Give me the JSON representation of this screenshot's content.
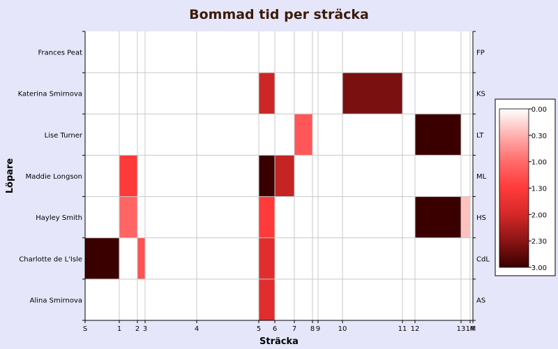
{
  "chart_data": {
    "type": "heatmap",
    "title": "Bommad tid per sträcka",
    "xlabel": "Sträcka",
    "ylabel": "Löpare",
    "x_ticks": [
      "S",
      "1",
      "2",
      "3",
      "4",
      "5",
      "6",
      "7",
      "8",
      "9",
      "10",
      "11",
      "12",
      "13",
      "14",
      "M"
    ],
    "runners": [
      {
        "name": "Frances Peat",
        "short": "FP"
      },
      {
        "name": "Katerina Smirnova",
        "short": "KS"
      },
      {
        "name": "Lise Turner",
        "short": "LT"
      },
      {
        "name": "Maddie Longson",
        "short": "ML"
      },
      {
        "name": "Hayley Smith",
        "short": "HS"
      },
      {
        "name": "Charlotte de L'Isle",
        "short": "CdL"
      },
      {
        "name": "Alina Smirnova",
        "short": "AS"
      }
    ],
    "cells": [
      {
        "runner": "Katerina Smirnova",
        "from": "5",
        "to": "6",
        "value": 2.05
      },
      {
        "runner": "Katerina Smirnova",
        "from": "10",
        "to": "11",
        "value": 2.6
      },
      {
        "runner": "Lise Turner",
        "from": "7",
        "to": "8",
        "value": 1.2
      },
      {
        "runner": "Lise Turner",
        "from": "12",
        "to": "13",
        "value": 3.0
      },
      {
        "runner": "Maddie Longson",
        "from": "1",
        "to": "2",
        "value": 1.5
      },
      {
        "runner": "Maddie Longson",
        "from": "5",
        "to": "6",
        "value": 3.0
      },
      {
        "runner": "Maddie Longson",
        "from": "6",
        "to": "7",
        "value": 2.1
      },
      {
        "runner": "Hayley Smith",
        "from": "1",
        "to": "2",
        "value": 1.05
      },
      {
        "runner": "Hayley Smith",
        "from": "5",
        "to": "6",
        "value": 1.5
      },
      {
        "runner": "Hayley Smith",
        "from": "12",
        "to": "13",
        "value": 3.0
      },
      {
        "runner": "Hayley Smith",
        "from": "13",
        "to": "14",
        "value": 0.4
      },
      {
        "runner": "Charlotte de L'Isle",
        "from": "S",
        "to": "1",
        "value": 3.0
      },
      {
        "runner": "Charlotte de L'Isle",
        "from": "2",
        "to": "3",
        "value": 1.25
      },
      {
        "runner": "Charlotte de L'Isle",
        "from": "5",
        "to": "6",
        "value": 1.85
      },
      {
        "runner": "Alina Smirnova",
        "from": "5",
        "to": "6",
        "value": 1.85
      }
    ],
    "colorbar": {
      "ticks": [
        "0.00",
        "0.30",
        "1.00",
        "1.30",
        "2.00",
        "2.30",
        "3.00"
      ],
      "colors": [
        "#ffffff",
        "#ffb0b0",
        "#ff6a6a",
        "#ff3a3a",
        "#d42828",
        "#8a1414",
        "#3a0000"
      ],
      "range": [
        0,
        3
      ]
    },
    "grid": true
  }
}
